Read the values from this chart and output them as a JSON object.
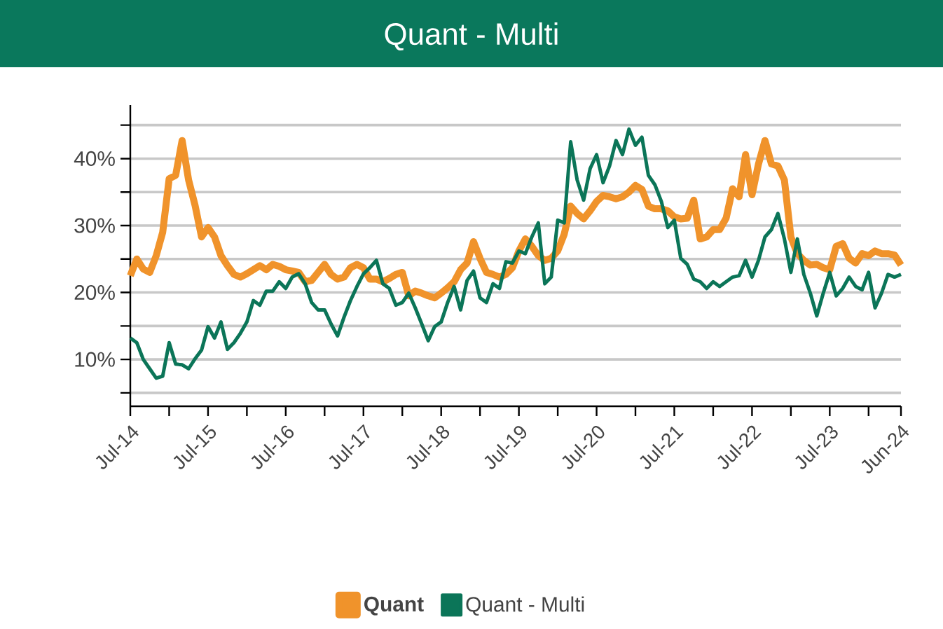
{
  "chart_data": {
    "type": "line",
    "title": "Quant - Multi",
    "x": [
      "2014-07",
      "2014-08",
      "2014-09",
      "2014-10",
      "2014-11",
      "2014-12",
      "2015-01",
      "2015-02",
      "2015-03",
      "2015-04",
      "2015-05",
      "2015-06",
      "2015-07",
      "2015-08",
      "2015-09",
      "2015-10",
      "2015-11",
      "2015-12",
      "2016-01",
      "2016-02",
      "2016-03",
      "2016-04",
      "2016-05",
      "2016-06",
      "2016-07",
      "2016-08",
      "2016-09",
      "2016-10",
      "2016-11",
      "2016-12",
      "2017-01",
      "2017-02",
      "2017-03",
      "2017-04",
      "2017-05",
      "2017-06",
      "2017-07",
      "2017-08",
      "2017-09",
      "2017-10",
      "2017-11",
      "2017-12",
      "2018-01",
      "2018-02",
      "2018-03",
      "2018-04",
      "2018-05",
      "2018-06",
      "2018-07",
      "2018-08",
      "2018-09",
      "2018-10",
      "2018-11",
      "2018-12",
      "2019-01",
      "2019-02",
      "2019-03",
      "2019-04",
      "2019-05",
      "2019-06",
      "2019-07",
      "2019-08",
      "2019-09",
      "2019-10",
      "2019-11",
      "2019-12",
      "2020-01",
      "2020-02",
      "2020-03",
      "2020-04",
      "2020-05",
      "2020-06",
      "2020-07",
      "2020-08",
      "2020-09",
      "2020-10",
      "2020-11",
      "2020-12",
      "2021-01",
      "2021-02",
      "2021-03",
      "2021-04",
      "2021-05",
      "2021-06",
      "2021-07",
      "2021-08",
      "2021-09",
      "2021-10",
      "2021-11",
      "2021-12",
      "2022-01",
      "2022-02",
      "2022-03",
      "2022-04",
      "2022-05",
      "2022-06",
      "2022-07",
      "2022-08",
      "2022-09",
      "2022-10",
      "2022-11",
      "2022-12",
      "2023-01",
      "2023-02",
      "2023-03",
      "2023-04",
      "2023-05",
      "2023-06",
      "2023-07",
      "2023-08",
      "2023-09",
      "2023-10",
      "2023-11",
      "2023-12",
      "2024-01",
      "2024-02",
      "2024-03",
      "2024-04",
      "2024-05",
      "2024-06"
    ],
    "series": [
      {
        "name": "Quant",
        "color": "#f0932b",
        "values": [
          22.5,
          25,
          23.5,
          23,
          25.5,
          29,
          37,
          37.5,
          42.7,
          36.8,
          33,
          28.3,
          29.7,
          28.3,
          25.5,
          24,
          22.7,
          22.3,
          22.8,
          23.4,
          24,
          23.4,
          24.2,
          23.9,
          23.4,
          23.2,
          23,
          21.6,
          21.8,
          23,
          24.2,
          22.7,
          22,
          22.3,
          23.7,
          24.2,
          23.7,
          22,
          22,
          21.6,
          22.1,
          22.7,
          23,
          19.5,
          20.2,
          19.9,
          19.5,
          19.2,
          19.9,
          20.7,
          21.6,
          23.4,
          24.4,
          27.6,
          25.1,
          23,
          22.7,
          22.3,
          22.7,
          23.7,
          26.2,
          28,
          26.9,
          25.5,
          24.8,
          25.1,
          26.2,
          28.7,
          32.9,
          31.8,
          31,
          32.2,
          33.6,
          34.5,
          34.3,
          34,
          34.3,
          35,
          36,
          35.4,
          32.9,
          32.5,
          32.5,
          32.2,
          31.3,
          31,
          31.1,
          33.8,
          28,
          28.3,
          29.4,
          29.4,
          31.1,
          35.5,
          34.3,
          40.6,
          34.6,
          39.2,
          42.7,
          39.2,
          38.9,
          36.8,
          28.3,
          25.8,
          24.8,
          24.1,
          24.2,
          23.7,
          23.4,
          26.9,
          27.3,
          25.1,
          24.4,
          25.8,
          25.5,
          26.2,
          25.8,
          25.8,
          25.6,
          24.1
        ]
      },
      {
        "name": "Quant - Multi",
        "color": "#0b7558",
        "values": [
          13.2,
          12.5,
          10,
          8.6,
          7.2,
          7.5,
          12.5,
          9.3,
          9.2,
          8.6,
          10.1,
          11.4,
          14.9,
          13.2,
          15.6,
          11.5,
          12.5,
          13.9,
          15.6,
          18.8,
          18.1,
          20.2,
          20.2,
          21.6,
          20.6,
          22.3,
          22.8,
          21.3,
          18.5,
          17.4,
          17.4,
          15.3,
          13.5,
          16.3,
          18.8,
          20.9,
          22.8,
          23.7,
          24.8,
          21.3,
          20.6,
          18.1,
          18.5,
          19.9,
          17.7,
          15.3,
          12.8,
          14.9,
          15.6,
          18.5,
          20.9,
          17.4,
          21.8,
          23.2,
          19.2,
          18.5,
          21.3,
          20.6,
          24.6,
          24.4,
          26.2,
          25.8,
          28.3,
          30.4,
          21.3,
          22.3,
          30.8,
          30.4,
          42.5,
          36.8,
          33.8,
          38.5,
          40.6,
          36.4,
          38.9,
          42.7,
          40.6,
          44.4,
          42,
          43.2,
          37.5,
          36.1,
          33.6,
          29.7,
          30.8,
          25.1,
          24.2,
          22,
          21.6,
          20.6,
          21.6,
          20.9,
          21.6,
          22.3,
          22.5,
          24.8,
          22.3,
          24.8,
          28.3,
          29.4,
          31.8,
          28,
          23,
          28,
          22.7,
          19.9,
          16.5,
          19.9,
          23,
          19.5,
          20.6,
          22.3,
          20.9,
          20.4,
          23,
          17.7,
          19.9,
          22.7,
          22.3,
          22.7
        ]
      }
    ],
    "xlim": [
      "2014-07",
      "2024-06"
    ],
    "xticks": [
      {
        "value": "2014-07",
        "label": "Jul-14"
      },
      {
        "value": "2015-01",
        "label": null
      },
      {
        "value": "2015-07",
        "label": "Jul-15"
      },
      {
        "value": "2016-01",
        "label": null
      },
      {
        "value": "2016-07",
        "label": "Jul-16"
      },
      {
        "value": "2017-01",
        "label": null
      },
      {
        "value": "2017-07",
        "label": "Jul-17"
      },
      {
        "value": "2018-01",
        "label": null
      },
      {
        "value": "2018-07",
        "label": "Jul-18"
      },
      {
        "value": "2019-01",
        "label": null
      },
      {
        "value": "2019-07",
        "label": "Jul-19"
      },
      {
        "value": "2020-01",
        "label": null
      },
      {
        "value": "2020-07",
        "label": "Jul-20"
      },
      {
        "value": "2021-01",
        "label": null
      },
      {
        "value": "2021-07",
        "label": "Jul-21"
      },
      {
        "value": "2022-01",
        "label": null
      },
      {
        "value": "2022-07",
        "label": "Jul-22"
      },
      {
        "value": "2023-01",
        "label": null
      },
      {
        "value": "2023-07",
        "label": "Jul-23"
      },
      {
        "value": "2024-01",
        "label": null
      },
      {
        "value": "2024-06",
        "label": "Jun-24"
      }
    ],
    "ylim": [
      3,
      48
    ],
    "yticks": [
      {
        "value": 5,
        "label": null
      },
      {
        "value": 10,
        "label": "10%"
      },
      {
        "value": 15,
        "label": null
      },
      {
        "value": 20,
        "label": "20%"
      },
      {
        "value": 25,
        "label": null
      },
      {
        "value": 30,
        "label": "30%"
      },
      {
        "value": 35,
        "label": null
      },
      {
        "value": 40,
        "label": "40%"
      },
      {
        "value": 45,
        "label": null
      }
    ],
    "grid": "y",
    "legend": "bottom"
  }
}
